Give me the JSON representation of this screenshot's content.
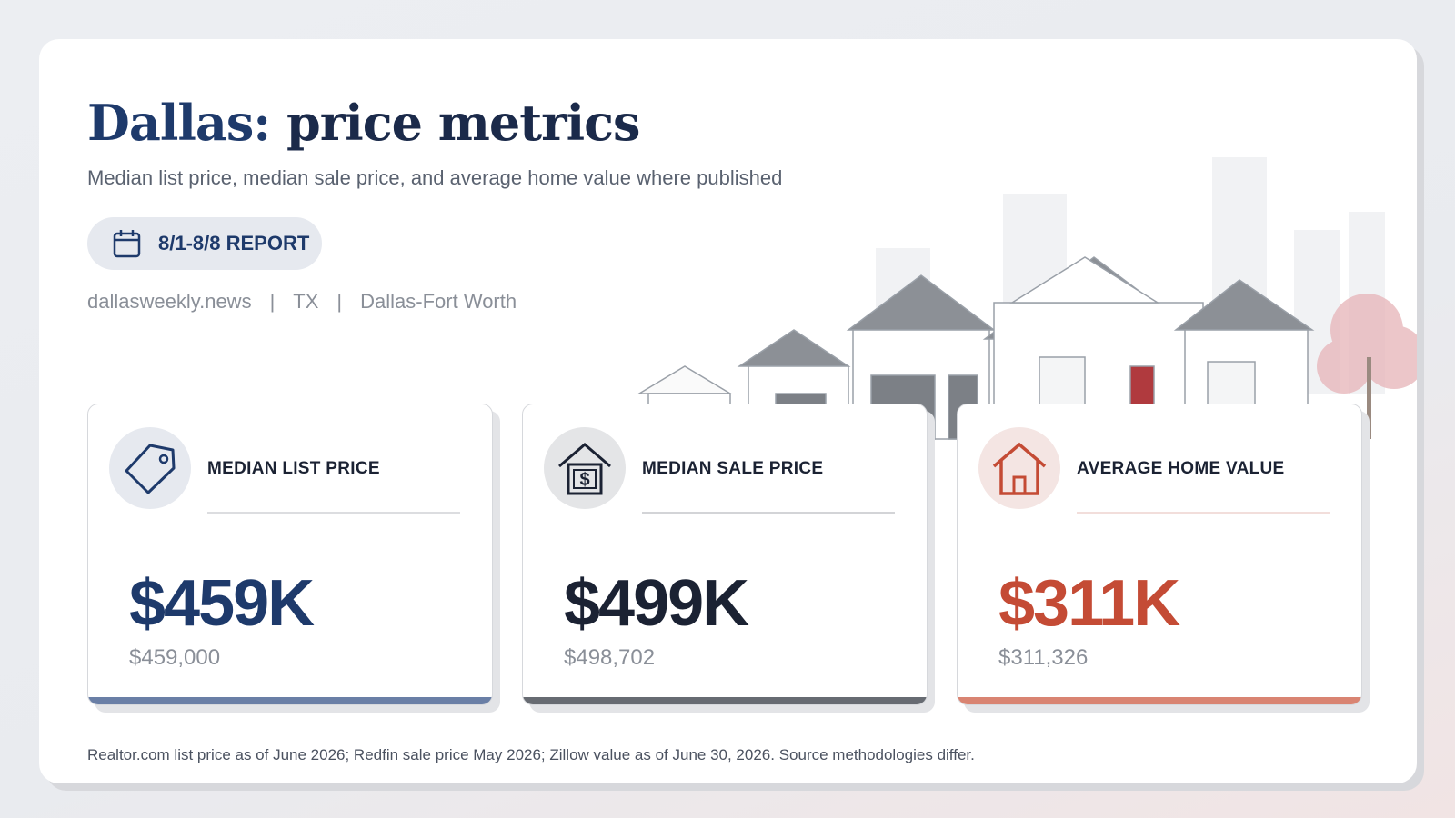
{
  "header": {
    "title_place": "Dallas:",
    "title_rest": "price metrics",
    "subtitle": "Median list price, median sale price, and average home value where published"
  },
  "badge": "8/1-8/8 REPORT",
  "meta": {
    "items": [
      "dallasweekly.news",
      "TX",
      "Dallas-Fort Worth"
    ],
    "separator": "|"
  },
  "cards": [
    {
      "label": "MEDIAN LIST PRICE",
      "value": "$459K",
      "exact": "$459,000"
    },
    {
      "label": "MEDIAN SALE PRICE",
      "value": "$499K",
      "exact": "$498,702"
    },
    {
      "label": "AVERAGE HOME VALUE",
      "value": "$311K",
      "exact": "$311,326"
    }
  ],
  "footnote": "Realtor.com list price as of June 2026; Redfin sale price May 2026; Zillow value as of June 30, 2026. Source methodologies differ."
}
